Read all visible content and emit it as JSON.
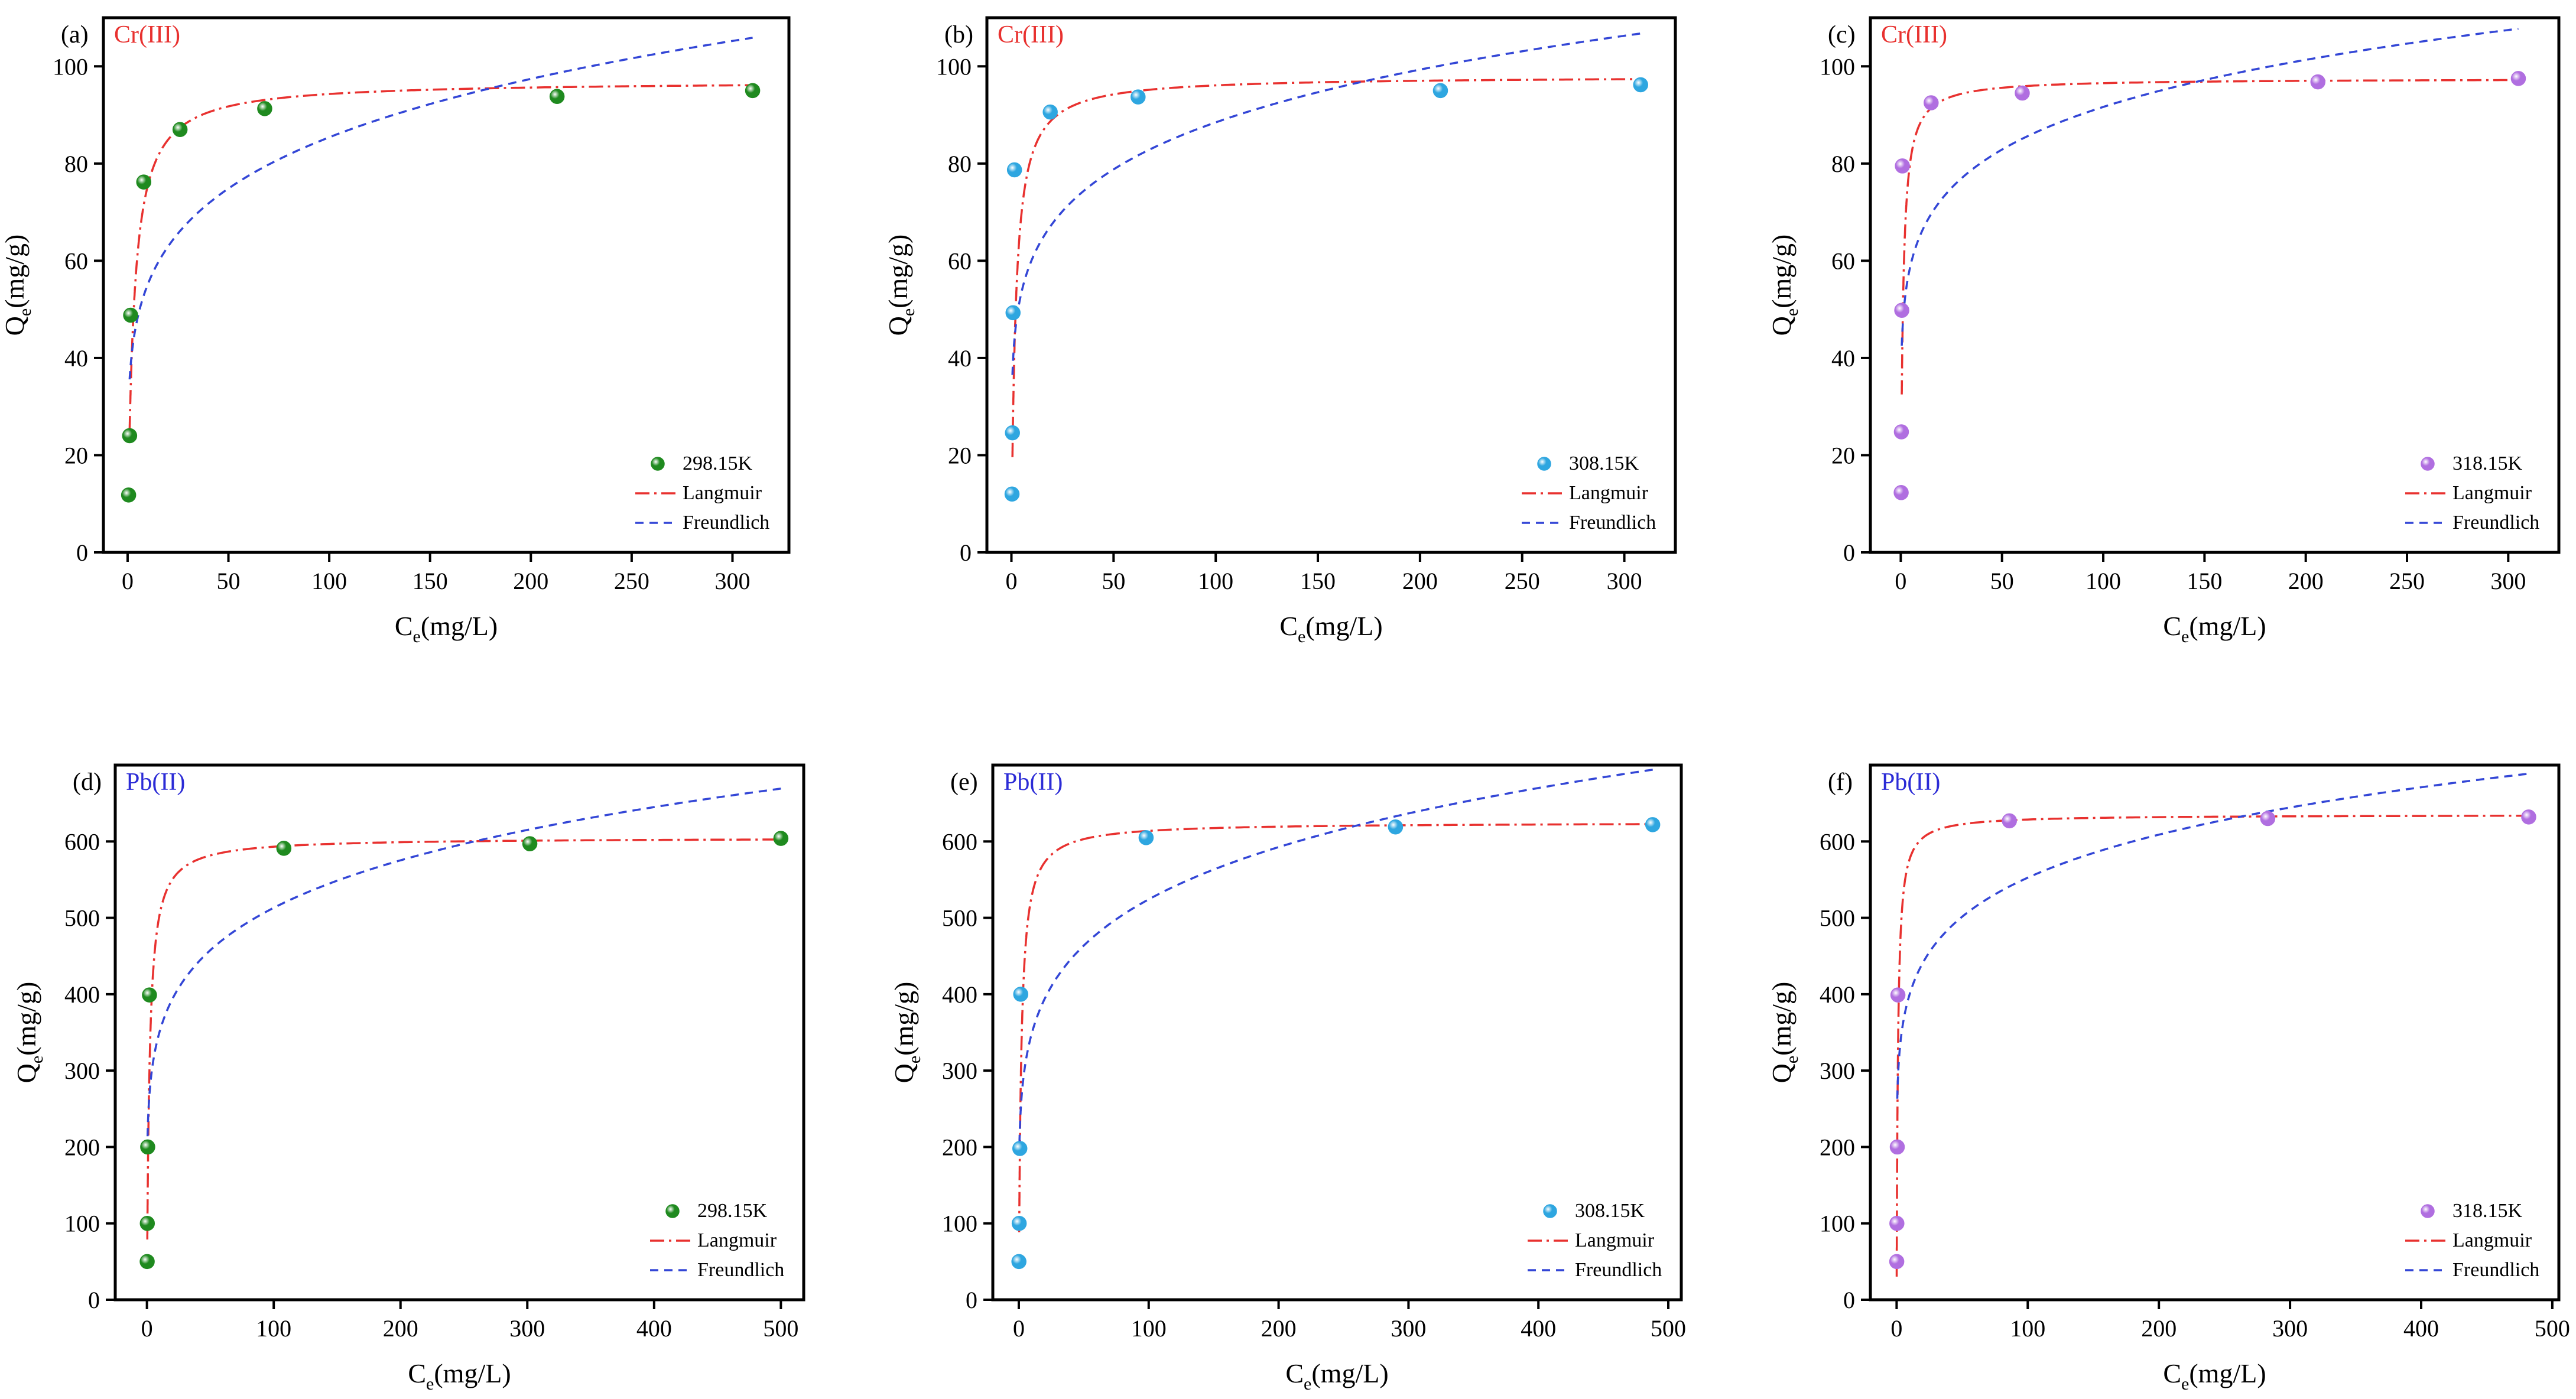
{
  "chart_data": [
    {
      "type": "scatter",
      "panel_label": "(a)",
      "ion_label": "Cr(III)",
      "ion_color": "#e8312f",
      "xlabel": "C",
      "xlabel_sub": "e",
      "xlabel_rest": "(mg/L)",
      "ylabel": "Q",
      "ylabel_sub": "e",
      "ylabel_rest": "(mg/g)",
      "xlim": [
        -12,
        328
      ],
      "ylim": [
        0,
        110
      ],
      "xticks": [
        0,
        50,
        100,
        150,
        200,
        250,
        300
      ],
      "yticks": [
        0,
        20,
        40,
        60,
        80,
        100
      ],
      "legend_position": "bottom-right",
      "marker_color": "#1f8a1f",
      "series": [
        {
          "name": "298.15K",
          "kind": "points",
          "x": [
            0.5,
            1.0,
            1.5,
            8,
            26,
            68,
            213,
            310
          ],
          "y": [
            11.8,
            24.0,
            48.8,
            76.2,
            87.0,
            91.3,
            93.8,
            95.0
          ]
        },
        {
          "name": "Langmuir",
          "kind": "langmuir",
          "qm": 97.0,
          "kl": 0.35,
          "x_start": 1,
          "x_end": 310
        },
        {
          "name": "Freundlich",
          "kind": "freundlich",
          "kf": 35.6,
          "n_inv": 0.19,
          "x_start": 1,
          "x_end": 310
        }
      ]
    },
    {
      "type": "scatter",
      "panel_label": "(b)",
      "ion_label": "Cr(III)",
      "ion_color": "#e8312f",
      "xlabel": "C",
      "xlabel_sub": "e",
      "xlabel_rest": "(mg/L)",
      "ylabel": "Q",
      "ylabel_sub": "e",
      "ylabel_rest": "(mg/g)",
      "xlim": [
        -12,
        325
      ],
      "ylim": [
        0,
        110
      ],
      "xticks": [
        0,
        50,
        100,
        150,
        200,
        250,
        300
      ],
      "yticks": [
        0,
        20,
        40,
        60,
        80,
        100
      ],
      "legend_position": "bottom-right",
      "marker_color": "#2ea6e0",
      "series": [
        {
          "name": "308.15K",
          "kind": "points",
          "x": [
            0.3,
            0.5,
            0.8,
            1.5,
            19,
            62,
            210,
            308
          ],
          "y": [
            12.0,
            24.6,
            49.3,
            78.7,
            90.6,
            93.7,
            95.0,
            96.2
          ]
        },
        {
          "name": "Langmuir",
          "kind": "langmuir",
          "qm": 98.0,
          "kl": 0.5,
          "x_start": 0.5,
          "x_end": 308
        },
        {
          "name": "Freundlich",
          "kind": "freundlich",
          "kf": 41.0,
          "n_inv": 0.167,
          "x_start": 0.5,
          "x_end": 308
        }
      ]
    },
    {
      "type": "scatter",
      "panel_label": "(c)",
      "ion_label": "Cr(III)",
      "ion_color": "#e8312f",
      "xlabel": "C",
      "xlabel_sub": "e",
      "xlabel_rest": "(mg/L)",
      "ylabel": "Q",
      "ylabel_sub": "e",
      "ylabel_rest": "(mg/g)",
      "xlim": [
        -15,
        325
      ],
      "ylim": [
        0,
        110
      ],
      "xticks": [
        0,
        50,
        100,
        150,
        200,
        250,
        300
      ],
      "yticks": [
        0,
        20,
        40,
        60,
        80,
        100
      ],
      "legend_position": "bottom-right",
      "marker_color": "#b06ee0",
      "series": [
        {
          "name": "318.15K",
          "kind": "points",
          "x": [
            0.2,
            0.3,
            0.5,
            0.8,
            15,
            60,
            206,
            305
          ],
          "y": [
            12.3,
            24.8,
            49.8,
            79.5,
            92.5,
            94.5,
            96.8,
            97.5
          ]
        },
        {
          "name": "Langmuir",
          "kind": "langmuir",
          "qm": 97.5,
          "kl": 1.0,
          "x_start": 0.5,
          "x_end": 305
        },
        {
          "name": "Freundlich",
          "kind": "freundlich",
          "kf": 47.0,
          "n_inv": 0.145,
          "x_start": 0.5,
          "x_end": 305
        }
      ]
    },
    {
      "type": "scatter",
      "panel_label": "(d)",
      "ion_label": "Pb(II)",
      "ion_color": "#2b2bd6",
      "xlabel": "C",
      "xlabel_sub": "e",
      "xlabel_rest": "(mg/L)",
      "ylabel": "Q",
      "ylabel_sub": "e",
      "ylabel_rest": "(mg/g)",
      "xlim": [
        -25,
        518
      ],
      "ylim": [
        0,
        700
      ],
      "xticks": [
        0,
        100,
        200,
        300,
        400,
        500
      ],
      "yticks": [
        0,
        100,
        200,
        300,
        400,
        500,
        600
      ],
      "legend_position": "bottom-right",
      "marker_color": "#1f8a1f",
      "series": [
        {
          "name": "298.15K",
          "kind": "points",
          "x": [
            0.2,
            0.3,
            0.6,
            2,
            108,
            302,
            500
          ],
          "y": [
            50,
            100,
            200,
            399,
            591,
            597,
            604
          ]
        },
        {
          "name": "Langmuir",
          "kind": "langmuir",
          "qm": 605,
          "kl": 0.5,
          "x_start": 0.3,
          "x_end": 500
        },
        {
          "name": "Freundlich",
          "kind": "freundlich",
          "kf": 240,
          "n_inv": 0.165,
          "x_start": 0.5,
          "x_end": 500
        }
      ]
    },
    {
      "type": "scatter",
      "panel_label": "(e)",
      "ion_label": "Pb(II)",
      "ion_color": "#2b2bd6",
      "xlabel": "C",
      "xlabel_sub": "e",
      "xlabel_rest": "(mg/L)",
      "ylabel": "Q",
      "ylabel_sub": "e",
      "ylabel_rest": "(mg/g)",
      "xlim": [
        -20,
        510
      ],
      "ylim": [
        0,
        700
      ],
      "xticks": [
        0,
        100,
        200,
        300,
        400,
        500
      ],
      "yticks": [
        0,
        100,
        200,
        300,
        400,
        500,
        600
      ],
      "legend_position": "bottom-right",
      "marker_color": "#2ea6e0",
      "series": [
        {
          "name": "308.15K",
          "kind": "points",
          "x": [
            0.1,
            0.3,
            0.8,
            1.5,
            98,
            290,
            488
          ],
          "y": [
            50,
            100,
            198,
            400,
            605,
            619,
            622
          ]
        },
        {
          "name": "Langmuir",
          "kind": "langmuir",
          "qm": 625,
          "kl": 0.55,
          "x_start": 0.3,
          "x_end": 490
        },
        {
          "name": "Freundlich",
          "kind": "freundlich",
          "kf": 232,
          "n_inv": 0.177,
          "x_start": 0.5,
          "x_end": 490
        }
      ]
    },
    {
      "type": "scatter",
      "panel_label": "(f)",
      "ion_label": "Pb(II)",
      "ion_color": "#2b2bd6",
      "xlabel": "C",
      "xlabel_sub": "e",
      "xlabel_rest": "(mg/L)",
      "ylabel": "Q",
      "ylabel_sub": "e",
      "ylabel_rest": "(mg/g)",
      "xlim": [
        -20,
        505
      ],
      "ylim": [
        0,
        700
      ],
      "xticks": [
        0,
        100,
        200,
        300,
        400,
        500
      ],
      "yticks": [
        0,
        100,
        200,
        300,
        400,
        500,
        600
      ],
      "legend_position": "bottom-right",
      "marker_color": "#b06ee0",
      "series": [
        {
          "name": "318.15K",
          "kind": "points",
          "x": [
            0.1,
            0.2,
            0.5,
            1.0,
            86,
            283,
            482
          ],
          "y": [
            50,
            100,
            200,
            399,
            627,
            630,
            632
          ]
        },
        {
          "name": "Langmuir",
          "kind": "langmuir",
          "qm": 635,
          "kl": 1.0,
          "x_start": 0.05,
          "x_end": 482
        },
        {
          "name": "Freundlich",
          "kind": "freundlich",
          "kf": 290,
          "n_inv": 0.14,
          "x_start": 0.5,
          "x_end": 482
        }
      ]
    }
  ]
}
